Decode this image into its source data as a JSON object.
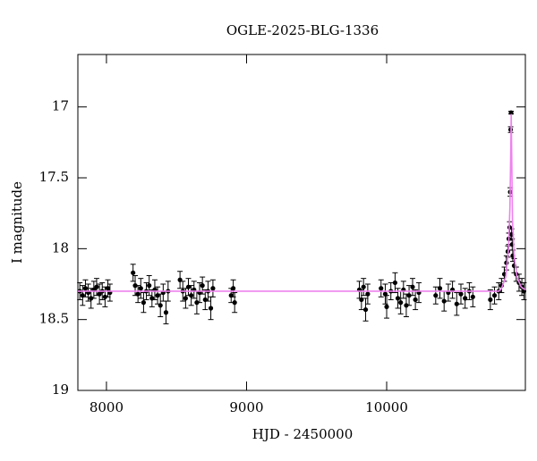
{
  "chart_data": {
    "type": "scatter",
    "title": "OGLE-2025-BLG-1336",
    "x_label": "HJD - 2450000",
    "y_label": "I magnitude",
    "xlim": [
      7796,
      10990
    ],
    "ylim": [
      16.63,
      19
    ],
    "y_inverted": true,
    "xticks": [
      8000,
      9000,
      10000
    ],
    "yticks": [
      17,
      17.5,
      18,
      18.5,
      19
    ],
    "series": [
      {
        "type": "scatter",
        "color": "#000000",
        "x": [
          7810,
          7830,
          7850,
          7870,
          7890,
          7910,
          7930,
          7950,
          7970,
          7990,
          8010,
          8025,
          8190,
          8205,
          8225,
          8245,
          8265,
          8285,
          8305,
          8325,
          8345,
          8365,
          8385,
          8405,
          8425,
          8440,
          8525,
          8545,
          8565,
          8585,
          8605,
          8625,
          8645,
          8665,
          8685,
          8705,
          8725,
          8745,
          8760,
          8890,
          8905,
          8915,
          9805,
          9820,
          9835,
          9850,
          9865,
          9960,
          9990,
          10000,
          10030,
          10060,
          10080,
          10100,
          10120,
          10140,
          10160,
          10185,
          10205,
          10230,
          10350,
          10380,
          10410,
          10440,
          10470,
          10500,
          10530,
          10560,
          10590,
          10615,
          10740,
          10770,
          10800,
          10820,
          10840,
          10855,
          10865,
          10872,
          10878,
          10882,
          10885,
          10888,
          10892,
          10896,
          10900,
          10910,
          10925,
          10945,
          10965,
          10980
        ],
        "values": [
          18.3,
          18.33,
          18.28,
          18.31,
          18.35,
          18.29,
          18.27,
          18.32,
          18.3,
          18.34,
          18.28,
          18.31,
          18.17,
          18.26,
          18.32,
          18.28,
          18.38,
          18.3,
          18.26,
          18.35,
          18.29,
          18.33,
          18.4,
          18.31,
          18.45,
          18.3,
          18.22,
          18.3,
          18.35,
          18.27,
          18.33,
          18.29,
          18.38,
          18.31,
          18.26,
          18.36,
          18.3,
          18.42,
          18.28,
          18.33,
          18.28,
          18.38,
          18.29,
          18.36,
          18.27,
          18.43,
          18.32,
          18.28,
          18.32,
          18.41,
          18.3,
          18.24,
          18.35,
          18.38,
          18.29,
          18.4,
          18.33,
          18.27,
          18.36,
          18.31,
          18.33,
          18.28,
          18.37,
          18.31,
          18.29,
          18.39,
          18.32,
          18.35,
          18.3,
          18.34,
          18.36,
          18.33,
          18.3,
          18.26,
          18.18,
          18.1,
          18.02,
          17.93,
          17.85,
          17.6,
          17.16,
          17.04,
          17.9,
          17.97,
          18.05,
          18.12,
          18.18,
          18.24,
          18.27,
          18.3
        ],
        "errors": [
          0.06,
          0.07,
          0.06,
          0.06,
          0.07,
          0.06,
          0.06,
          0.07,
          0.06,
          0.07,
          0.06,
          0.06,
          0.06,
          0.07,
          0.06,
          0.07,
          0.07,
          0.06,
          0.07,
          0.06,
          0.07,
          0.06,
          0.08,
          0.06,
          0.08,
          0.07,
          0.06,
          0.07,
          0.07,
          0.06,
          0.07,
          0.06,
          0.08,
          0.07,
          0.06,
          0.07,
          0.07,
          0.08,
          0.06,
          0.05,
          0.06,
          0.07,
          0.06,
          0.07,
          0.06,
          0.08,
          0.07,
          0.06,
          0.07,
          0.08,
          0.06,
          0.07,
          0.07,
          0.08,
          0.06,
          0.08,
          0.07,
          0.06,
          0.07,
          0.07,
          0.06,
          0.07,
          0.07,
          0.06,
          0.06,
          0.08,
          0.07,
          0.07,
          0.06,
          0.07,
          0.07,
          0.06,
          0.06,
          0.05,
          0.05,
          0.05,
          0.04,
          0.04,
          0.04,
          0.03,
          0.02,
          0.01,
          0.04,
          0.04,
          0.04,
          0.05,
          0.05,
          0.06,
          0.06,
          0.06
        ]
      },
      {
        "type": "line",
        "color": "#ee82ee",
        "x": [
          7796,
          10800,
          10820,
          10850,
          10870,
          10880,
          10886,
          10889,
          10892,
          10898,
          10910,
          10930,
          10960,
          10990
        ],
        "values": [
          18.3,
          18.3,
          18.28,
          18.2,
          18.0,
          17.7,
          17.3,
          17.05,
          17.3,
          17.8,
          18.05,
          18.2,
          18.27,
          18.29
        ]
      }
    ]
  }
}
